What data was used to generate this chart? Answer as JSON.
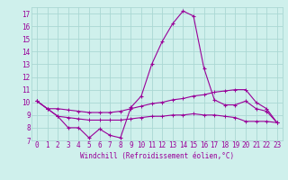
{
  "xlabel": "Windchill (Refroidissement éolien,°C)",
  "background_color": "#cff0ec",
  "grid_color": "#aad8d3",
  "line_color": "#990099",
  "x": [
    0,
    1,
    2,
    3,
    4,
    5,
    6,
    7,
    8,
    9,
    10,
    11,
    12,
    13,
    14,
    15,
    16,
    17,
    18,
    19,
    20,
    21,
    22,
    23
  ],
  "ylim": [
    7,
    17.5
  ],
  "yticks": [
    7,
    8,
    9,
    10,
    11,
    12,
    13,
    14,
    15,
    16,
    17
  ],
  "series": {
    "main": [
      10.1,
      9.5,
      8.9,
      8.0,
      8.0,
      7.2,
      7.9,
      7.4,
      7.2,
      9.6,
      10.5,
      13.0,
      14.8,
      16.2,
      17.2,
      16.8,
      12.7,
      10.2,
      9.8,
      9.8,
      10.1,
      9.5,
      9.3,
      8.4
    ],
    "upper": [
      10.1,
      9.5,
      9.5,
      9.4,
      9.3,
      9.2,
      9.2,
      9.2,
      9.3,
      9.5,
      9.7,
      9.9,
      10.0,
      10.2,
      10.3,
      10.5,
      10.6,
      10.8,
      10.9,
      11.0,
      11.0,
      10.0,
      9.5,
      8.4
    ],
    "lower": [
      10.1,
      9.5,
      8.9,
      8.8,
      8.7,
      8.6,
      8.6,
      8.6,
      8.6,
      8.7,
      8.8,
      8.9,
      8.9,
      9.0,
      9.0,
      9.1,
      9.0,
      9.0,
      8.9,
      8.8,
      8.5,
      8.5,
      8.5,
      8.4
    ]
  },
  "xlabel_fontsize": 5.5,
  "tick_fontsize": 5.5
}
